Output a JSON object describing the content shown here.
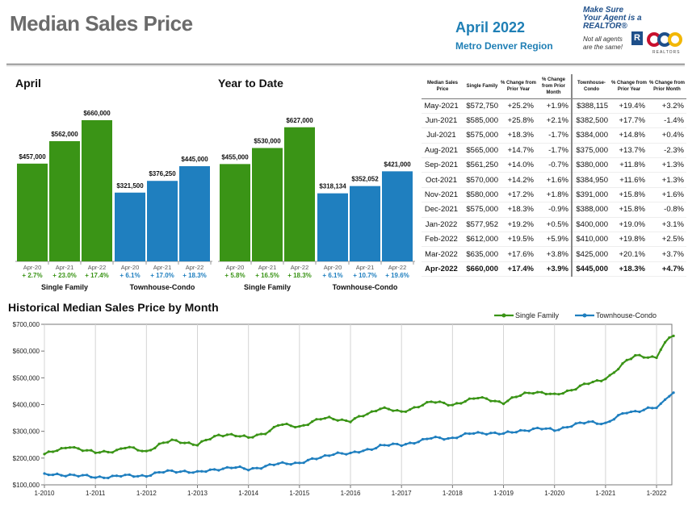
{
  "header": {
    "title": "Median Sales Price",
    "month": "April 2022",
    "region": "Metro Denver Region",
    "realtor_line1": "Make Sure",
    "realtor_line2": "Your Agent is a REALTOR®",
    "realtor_line3": "Not all agents",
    "realtor_line4": "are the same!",
    "realtor_mark": "R",
    "realtor_brand": "REALTORS"
  },
  "colors": {
    "single_family": "#3a9416",
    "townhouse": "#1f7fbf",
    "title_gray": "#6b6b6b",
    "accent": "#1f7fb5"
  },
  "chart_data": [
    {
      "type": "bar",
      "title": "April",
      "groups": [
        {
          "name": "Single Family",
          "color": "#3a9416",
          "categories": [
            "Apr-20",
            "Apr-21",
            "Apr-22"
          ],
          "values": [
            457000,
            562000,
            660000
          ],
          "value_labels": [
            "$457,000",
            "$562,000",
            "$660,000"
          ],
          "changes": [
            "+ 2.7%",
            "+ 23.0%",
            "+ 17.4%"
          ]
        },
        {
          "name": "Townhouse-Condo",
          "color": "#1f7fbf",
          "categories": [
            "Apr-20",
            "Apr-21",
            "Apr-22"
          ],
          "values": [
            321500,
            376250,
            445000
          ],
          "value_labels": [
            "$321,500",
            "$376,250",
            "$445,000"
          ],
          "changes": [
            "+ 6.1%",
            "+ 17.0%",
            "+ 18.3%"
          ]
        }
      ],
      "ylim": [
        0,
        700000
      ]
    },
    {
      "type": "bar",
      "title": "Year to Date",
      "groups": [
        {
          "name": "Single Family",
          "color": "#3a9416",
          "categories": [
            "Apr-20",
            "Apr-21",
            "Apr-22"
          ],
          "values": [
            455000,
            530000,
            627000
          ],
          "value_labels": [
            "$455,000",
            "$530,000",
            "$627,000"
          ],
          "changes": [
            "+ 5.8%",
            "+ 16.5%",
            "+ 18.3%"
          ]
        },
        {
          "name": "Townhouse-Condo",
          "color": "#1f7fbf",
          "categories": [
            "Apr-20",
            "Apr-21",
            "Apr-22"
          ],
          "values": [
            318134,
            352052,
            421000
          ],
          "value_labels": [
            "$318,134",
            "$352,052",
            "$421,000"
          ],
          "changes": [
            "+ 6.1%",
            "+ 10.7%",
            "+ 19.6%"
          ]
        }
      ],
      "ylim": [
        0,
        700000
      ]
    },
    {
      "type": "table",
      "columns": [
        "Median Sales Price",
        "Single Family",
        "% Change from Prior Year",
        "% Change from Prior Month",
        "Townhouse-Condo",
        "% Change from Prior Year",
        "% Change from Prior Month"
      ],
      "rows": [
        [
          "May-2021",
          "$572,750",
          "+25.2%",
          "+1.9%",
          "$388,115",
          "+19.4%",
          "+3.2%"
        ],
        [
          "Jun-2021",
          "$585,000",
          "+25.8%",
          "+2.1%",
          "$382,500",
          "+17.7%",
          "-1.4%"
        ],
        [
          "Jul-2021",
          "$575,000",
          "+18.3%",
          "-1.7%",
          "$384,000",
          "+14.8%",
          "+0.4%"
        ],
        [
          "Aug-2021",
          "$565,000",
          "+14.7%",
          "-1.7%",
          "$375,000",
          "+13.7%",
          "-2.3%"
        ],
        [
          "Sep-2021",
          "$561,250",
          "+14.0%",
          "-0.7%",
          "$380,000",
          "+11.8%",
          "+1.3%"
        ],
        [
          "Oct-2021",
          "$570,000",
          "+14.2%",
          "+1.6%",
          "$384,950",
          "+11.6%",
          "+1.3%"
        ],
        [
          "Nov-2021",
          "$580,000",
          "+17.2%",
          "+1.8%",
          "$391,000",
          "+15.8%",
          "+1.6%"
        ],
        [
          "Dec-2021",
          "$575,000",
          "+18.3%",
          "-0.9%",
          "$388,000",
          "+15.8%",
          "-0.8%"
        ],
        [
          "Jan-2022",
          "$577,952",
          "+19.2%",
          "+0.5%",
          "$400,000",
          "+19.0%",
          "+3.1%"
        ],
        [
          "Feb-2022",
          "$612,000",
          "+19.5%",
          "+5.9%",
          "$410,000",
          "+19.8%",
          "+2.5%"
        ],
        [
          "Mar-2022",
          "$635,000",
          "+17.6%",
          "+3.8%",
          "$425,000",
          "+20.1%",
          "+3.7%"
        ],
        [
          "Apr-2022",
          "$660,000",
          "+17.4%",
          "+3.9%",
          "$445,000",
          "+18.3%",
          "+4.7%"
        ]
      ],
      "bold_last_row": true
    },
    {
      "type": "line",
      "title": "Historical Median Sales Price by Month",
      "legend": "top-right",
      "x_ticks": [
        "1-2010",
        "1-2011",
        "1-2012",
        "1-2013",
        "1-2014",
        "1-2015",
        "1-2016",
        "1-2017",
        "1-2018",
        "1-2019",
        "1-2020",
        "1-2021",
        "1-2022"
      ],
      "x_range": [
        "2010-01",
        "2022-04"
      ],
      "y_ticks": [
        "$100,000",
        "$200,000",
        "$300,000",
        "$400,000",
        "$500,000",
        "$600,000",
        "$700,000"
      ],
      "ylim": [
        100000,
        700000
      ],
      "grid": "vertical",
      "series_anchor_format": "[years since Jan-2010, price]",
      "series": [
        {
          "name": "Single Family",
          "color": "#3a9416",
          "anchors": [
            [
              0,
              215000
            ],
            [
              0.3,
              230000
            ],
            [
              0.5,
              245000
            ],
            [
              0.8,
              228000
            ],
            [
              1.0,
              220000
            ],
            [
              1.4,
              228000
            ],
            [
              1.6,
              240000
            ],
            [
              2.0,
              225000
            ],
            [
              2.25,
              250000
            ],
            [
              2.5,
              265000
            ],
            [
              2.8,
              258000
            ],
            [
              3.0,
              250000
            ],
            [
              3.4,
              285000
            ],
            [
              3.6,
              290000
            ],
            [
              4.0,
              275000
            ],
            [
              4.4,
              300000
            ],
            [
              4.6,
              325000
            ],
            [
              5.0,
              318000
            ],
            [
              5.4,
              345000
            ],
            [
              5.6,
              350000
            ],
            [
              6.0,
              338000
            ],
            [
              6.4,
              370000
            ],
            [
              6.6,
              390000
            ],
            [
              7.0,
              370000
            ],
            [
              7.4,
              400000
            ],
            [
              7.6,
              410000
            ],
            [
              8.0,
              400000
            ],
            [
              8.5,
              425000
            ],
            [
              8.7,
              422000
            ],
            [
              9.0,
              405000
            ],
            [
              9.4,
              442000
            ],
            [
              9.6,
              448000
            ],
            [
              10.0,
              435000
            ],
            [
              10.4,
              460000
            ],
            [
              10.6,
              475000
            ],
            [
              10.9,
              490000
            ],
            [
              11.1,
              510000
            ],
            [
              11.4,
              560000
            ],
            [
              11.6,
              585000
            ],
            [
              12.0,
              575000
            ],
            [
              12.1,
              612000
            ],
            [
              12.2,
              635000
            ],
            [
              12.3,
              660000
            ]
          ]
        },
        {
          "name": "Townhouse-Condo",
          "color": "#1f7fbf",
          "anchors": [
            [
              0,
              137000
            ],
            [
              0.5,
              138000
            ],
            [
              1.0,
              128000
            ],
            [
              1.5,
              133000
            ],
            [
              2.0,
              135000
            ],
            [
              2.4,
              150000
            ],
            [
              2.7,
              152000
            ],
            [
              3.0,
              145000
            ],
            [
              3.4,
              160000
            ],
            [
              3.7,
              165000
            ],
            [
              4.0,
              158000
            ],
            [
              4.4,
              172000
            ],
            [
              4.6,
              178000
            ],
            [
              5.0,
              183000
            ],
            [
              5.4,
              200000
            ],
            [
              5.7,
              220000
            ],
            [
              6.0,
              215000
            ],
            [
              6.4,
              235000
            ],
            [
              6.6,
              247000
            ],
            [
              7.0,
              250000
            ],
            [
              7.4,
              265000
            ],
            [
              7.6,
              275000
            ],
            [
              8.0,
              275000
            ],
            [
              8.4,
              293000
            ],
            [
              8.7,
              295000
            ],
            [
              9.0,
              290000
            ],
            [
              9.4,
              305000
            ],
            [
              9.7,
              310000
            ],
            [
              10.0,
              305000
            ],
            [
              10.4,
              325000
            ],
            [
              10.7,
              335000
            ],
            [
              11.0,
              330000
            ],
            [
              11.4,
              370000
            ],
            [
              11.6,
              375000
            ],
            [
              11.8,
              385000
            ],
            [
              12.0,
              388000
            ],
            [
              12.1,
              400000
            ],
            [
              12.2,
              425000
            ],
            [
              12.3,
              445000
            ]
          ]
        }
      ]
    }
  ]
}
